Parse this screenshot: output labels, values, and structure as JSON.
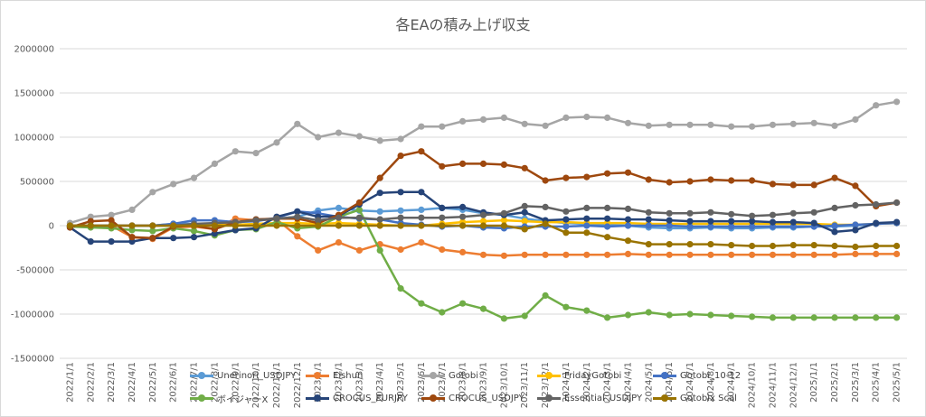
{
  "chart_data": {
    "type": "line",
    "title": "各EAの積み上げ収支",
    "xlabel": "",
    "ylabel": "",
    "ylim": [
      -1500000,
      2000000
    ],
    "yticks": [
      -1500000,
      -1000000,
      -500000,
      0,
      500000,
      1000000,
      1500000,
      2000000
    ],
    "ytick_labels": [
      "-1500000",
      "-1000000",
      "-500000",
      "0",
      "500000",
      "1000000",
      "1500000",
      "2000000"
    ],
    "grid": true,
    "legend_position": "bottom",
    "categories": [
      "2022/1/1",
      "2022/2/1",
      "2022/3/1",
      "2022/4/1",
      "2022/5/1",
      "2022/6/1",
      "2022/7/1",
      "2022/8/1",
      "2022/9/1",
      "2022/10/1",
      "2022/11/1",
      "2022/12/1",
      "2023/1/1",
      "2023/2/1",
      "2023/3/1",
      "2023/4/1",
      "2023/5/1",
      "2023/6/1",
      "2023/7/1",
      "2023/8/1",
      "2023/9/1",
      "2023/10/1",
      "2023/11/1",
      "2023/12/1",
      "2024/1/1",
      "2024/2/1",
      "2024/3/1",
      "2024/4/1",
      "2024/5/1",
      "2024/6/1",
      "2024/7/1",
      "2024/8/1",
      "2024/9/1",
      "2024/10/1",
      "2024/11/1",
      "2024/12/1",
      "2025/1/1",
      "2025/2/1",
      "2025/3/1",
      "2025/4/1",
      "2025/5/1"
    ],
    "series": [
      {
        "name": "Unerinori_USDJPY",
        "color": "#5b9bd5",
        "values": [
          0,
          0,
          0,
          0,
          0,
          20000,
          20000,
          0,
          30000,
          70000,
          80000,
          100000,
          170000,
          200000,
          170000,
          160000,
          170000,
          180000,
          200000,
          180000,
          140000,
          120000,
          80000,
          50000,
          30000,
          20000,
          10000,
          0,
          -20000,
          -30000,
          -30000,
          -20000,
          -30000,
          -30000,
          -20000,
          -20000,
          -10000,
          -10000,
          0,
          20000,
          30000
        ]
      },
      {
        "name": "Eishun",
        "color": "#ed7d31",
        "values": [
          0,
          0,
          0,
          -130000,
          -150000,
          -20000,
          -10000,
          -40000,
          80000,
          60000,
          70000,
          -120000,
          -280000,
          -190000,
          -280000,
          -210000,
          -270000,
          -190000,
          -270000,
          -300000,
          -330000,
          -340000,
          -330000,
          -330000,
          -330000,
          -330000,
          -330000,
          -320000,
          -330000,
          -330000,
          -330000,
          -330000,
          -330000,
          -330000,
          -330000,
          -330000,
          -330000,
          -330000,
          -320000,
          -320000,
          -320000
        ]
      },
      {
        "name": "Gotobi",
        "color": "#a5a5a5",
        "values": [
          30000,
          100000,
          120000,
          180000,
          380000,
          470000,
          540000,
          700000,
          840000,
          820000,
          940000,
          1150000,
          1000000,
          1050000,
          1010000,
          960000,
          980000,
          1120000,
          1120000,
          1180000,
          1200000,
          1220000,
          1150000,
          1130000,
          1220000,
          1230000,
          1220000,
          1160000,
          1130000,
          1140000,
          1140000,
          1140000,
          1120000,
          1120000,
          1140000,
          1150000,
          1160000,
          1130000,
          1200000,
          1360000,
          1400000
        ]
      },
      {
        "name": "FridayGotobi",
        "color": "#ffc000",
        "values": [
          0,
          0,
          0,
          0,
          0,
          0,
          0,
          10000,
          10000,
          20000,
          30000,
          30000,
          20000,
          30000,
          20000,
          10000,
          0,
          0,
          20000,
          40000,
          50000,
          60000,
          50000,
          40000,
          40000,
          30000,
          30000,
          30000,
          20000,
          20000,
          20000,
          20000,
          20000,
          20000,
          20000,
          20000,
          20000,
          10000,
          10000,
          20000,
          30000
        ]
      },
      {
        "name": "Gotobi_10-12",
        "color": "#4472c4",
        "values": [
          -10000,
          0,
          0,
          0,
          0,
          20000,
          60000,
          60000,
          40000,
          50000,
          90000,
          160000,
          140000,
          100000,
          80000,
          70000,
          30000,
          10000,
          -10000,
          0,
          -20000,
          -30000,
          -10000,
          -10000,
          -10000,
          0,
          -10000,
          0,
          0,
          0,
          -10000,
          -10000,
          -10000,
          -10000,
          -10000,
          -10000,
          -10000,
          0,
          10000,
          20000,
          30000
        ]
      },
      {
        "name": "ボイジャーX",
        "color": "#70ad47",
        "values": [
          -10000,
          -20000,
          -30000,
          -50000,
          -60000,
          -30000,
          -60000,
          -110000,
          -50000,
          -40000,
          40000,
          -30000,
          -10000,
          100000,
          180000,
          -280000,
          -710000,
          -880000,
          -980000,
          -880000,
          -940000,
          -1050000,
          -1020000,
          -790000,
          -920000,
          -960000,
          -1040000,
          -1010000,
          -980000,
          -1010000,
          -1000000,
          -1010000,
          -1020000,
          -1030000,
          -1040000,
          -1040000,
          -1040000,
          -1040000,
          -1040000,
          -1040000,
          -1040000
        ]
      },
      {
        "name": "CROCUS_EURJPY",
        "color": "#264478",
        "values": [
          -20000,
          -180000,
          -180000,
          -180000,
          -140000,
          -140000,
          -130000,
          -90000,
          -50000,
          -30000,
          100000,
          160000,
          100000,
          110000,
          240000,
          370000,
          380000,
          380000,
          200000,
          210000,
          150000,
          120000,
          150000,
          60000,
          70000,
          80000,
          80000,
          70000,
          70000,
          60000,
          50000,
          50000,
          50000,
          50000,
          40000,
          40000,
          30000,
          -70000,
          -50000,
          30000,
          40000
        ]
      },
      {
        "name": "CROCUS_USDJPY",
        "color": "#9e480e",
        "values": [
          -20000,
          50000,
          60000,
          -130000,
          -140000,
          -10000,
          0,
          -40000,
          40000,
          70000,
          80000,
          80000,
          30000,
          120000,
          260000,
          540000,
          790000,
          840000,
          670000,
          700000,
          700000,
          690000,
          650000,
          510000,
          540000,
          550000,
          590000,
          600000,
          520000,
          490000,
          500000,
          520000,
          510000,
          510000,
          470000,
          460000,
          460000,
          540000,
          450000,
          220000,
          260000
        ]
      },
      {
        "name": "Essential_USDJPY",
        "color": "#636363",
        "values": [
          0,
          0,
          0,
          0,
          0,
          0,
          20000,
          30000,
          40000,
          60000,
          80000,
          100000,
          60000,
          90000,
          90000,
          70000,
          90000,
          90000,
          90000,
          100000,
          120000,
          140000,
          220000,
          210000,
          160000,
          200000,
          200000,
          190000,
          150000,
          140000,
          140000,
          150000,
          130000,
          110000,
          120000,
          140000,
          150000,
          200000,
          230000,
          240000,
          260000
        ]
      },
      {
        "name": "Gotobix Scal",
        "color": "#997300",
        "values": [
          0,
          0,
          0,
          0,
          0,
          0,
          0,
          0,
          0,
          0,
          0,
          0,
          0,
          0,
          0,
          0,
          0,
          0,
          0,
          0,
          0,
          0,
          -40000,
          20000,
          -80000,
          -80000,
          -130000,
          -170000,
          -210000,
          -210000,
          -210000,
          -210000,
          -220000,
          -230000,
          -230000,
          -220000,
          -220000,
          -230000,
          -240000,
          -230000,
          -230000
        ]
      }
    ]
  }
}
